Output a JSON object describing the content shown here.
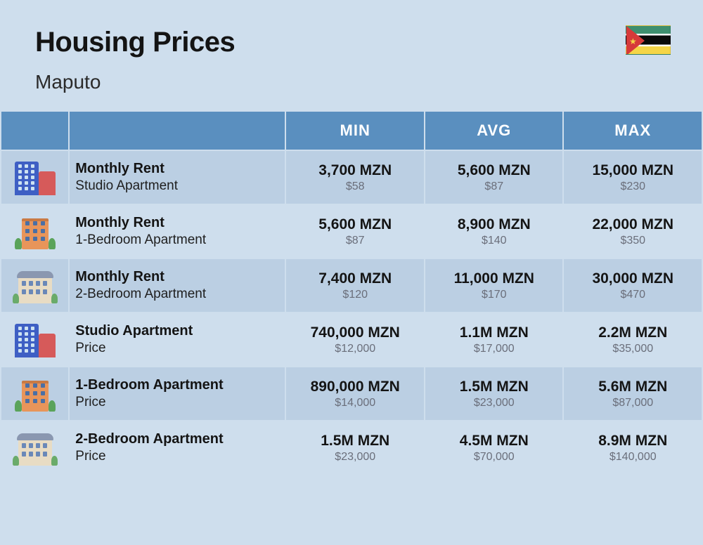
{
  "title": "Housing Prices",
  "subtitle": "Maputo",
  "columns": [
    "MIN",
    "AVG",
    "MAX"
  ],
  "colors": {
    "page_bg": "#cedeed",
    "header_bg": "#5a8fbf",
    "header_text": "#ffffff",
    "row_even": "#bbcfe3",
    "row_odd": "#cedeed",
    "text_main": "#141414",
    "text_sub": "#6a6e7a"
  },
  "rows": [
    {
      "icon": "studio",
      "title": "Monthly Rent",
      "subtitle": "Studio Apartment",
      "min": {
        "main": "3,700 MZN",
        "sub": "$58"
      },
      "avg": {
        "main": "5,600 MZN",
        "sub": "$87"
      },
      "max": {
        "main": "15,000 MZN",
        "sub": "$230"
      }
    },
    {
      "icon": "onebed",
      "title": "Monthly Rent",
      "subtitle": "1-Bedroom Apartment",
      "min": {
        "main": "5,600 MZN",
        "sub": "$87"
      },
      "avg": {
        "main": "8,900 MZN",
        "sub": "$140"
      },
      "max": {
        "main": "22,000 MZN",
        "sub": "$350"
      }
    },
    {
      "icon": "twobed",
      "title": "Monthly Rent",
      "subtitle": "2-Bedroom Apartment",
      "min": {
        "main": "7,400 MZN",
        "sub": "$120"
      },
      "avg": {
        "main": "11,000 MZN",
        "sub": "$170"
      },
      "max": {
        "main": "30,000 MZN",
        "sub": "$470"
      }
    },
    {
      "icon": "studio",
      "title": "Studio Apartment",
      "subtitle": "Price",
      "min": {
        "main": "740,000 MZN",
        "sub": "$12,000"
      },
      "avg": {
        "main": "1.1M MZN",
        "sub": "$17,000"
      },
      "max": {
        "main": "2.2M MZN",
        "sub": "$35,000"
      }
    },
    {
      "icon": "onebed",
      "title": "1-Bedroom Apartment",
      "subtitle": "Price",
      "min": {
        "main": "890,000 MZN",
        "sub": "$14,000"
      },
      "avg": {
        "main": "1.5M MZN",
        "sub": "$23,000"
      },
      "max": {
        "main": "5.6M MZN",
        "sub": "$87,000"
      }
    },
    {
      "icon": "twobed",
      "title": "2-Bedroom Apartment",
      "subtitle": "Price",
      "min": {
        "main": "1.5M MZN",
        "sub": "$23,000"
      },
      "avg": {
        "main": "4.5M MZN",
        "sub": "$70,000"
      },
      "max": {
        "main": "8.9M MZN",
        "sub": "$140,000"
      }
    }
  ]
}
